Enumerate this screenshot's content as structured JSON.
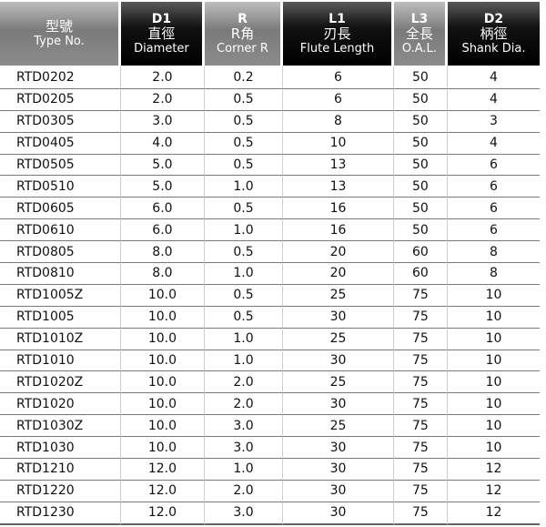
{
  "headers": [
    {
      "code": "",
      "cjk": "型號",
      "en": "Type No.",
      "style": "gray"
    },
    {
      "code": "D1",
      "cjk": "直徑",
      "en": "Diameter",
      "style": "black"
    },
    {
      "code": "R",
      "cjk": "R角",
      "en": "Corner R",
      "style": "gray"
    },
    {
      "code": "L1",
      "cjk": "刃長",
      "en": "Flute Length",
      "style": "black"
    },
    {
      "code": "L3",
      "cjk": "全長",
      "en": "O.A.L.",
      "style": "gray"
    },
    {
      "code": "D2",
      "cjk": "柄徑",
      "en": "Shank Dia.",
      "style": "black"
    }
  ],
  "rows": [
    [
      "RTD0202",
      "2.0",
      "0.2",
      "6",
      "50",
      "4"
    ],
    [
      "RTD0205",
      "2.0",
      "0.5",
      "6",
      "50",
      "4"
    ],
    [
      "RTD0305",
      "3.0",
      "0.5",
      "8",
      "50",
      "3"
    ],
    [
      "RTD0405",
      "4.0",
      "0.5",
      "10",
      "50",
      "4"
    ],
    [
      "RTD0505",
      "5.0",
      "0.5",
      "13",
      "50",
      "6"
    ],
    [
      "RTD0510",
      "5.0",
      "1.0",
      "13",
      "50",
      "6"
    ],
    [
      "RTD0605",
      "6.0",
      "0.5",
      "16",
      "50",
      "6"
    ],
    [
      "RTD0610",
      "6.0",
      "1.0",
      "16",
      "50",
      "6"
    ],
    [
      "RTD0805",
      "8.0",
      "0.5",
      "20",
      "60",
      "8"
    ],
    [
      "RTD0810",
      "8.0",
      "1.0",
      "20",
      "60",
      "8"
    ],
    [
      "RTD1005Z",
      "10.0",
      "0.5",
      "25",
      "75",
      "10"
    ],
    [
      "RTD1005",
      "10.0",
      "0.5",
      "30",
      "75",
      "10"
    ],
    [
      "RTD1010Z",
      "10.0",
      "1.0",
      "25",
      "75",
      "10"
    ],
    [
      "RTD1010",
      "10.0",
      "1.0",
      "30",
      "75",
      "10"
    ],
    [
      "RTD1020Z",
      "10.0",
      "2.0",
      "25",
      "75",
      "10"
    ],
    [
      "RTD1020",
      "10.0",
      "2.0",
      "30",
      "75",
      "10"
    ],
    [
      "RTD1030Z",
      "10.0",
      "3.0",
      "25",
      "75",
      "10"
    ],
    [
      "RTD1030",
      "10.0",
      "3.0",
      "30",
      "75",
      "10"
    ],
    [
      "RTD1210",
      "12.0",
      "1.0",
      "30",
      "75",
      "12"
    ],
    [
      "RTD1220",
      "12.0",
      "2.0",
      "30",
      "75",
      "12"
    ],
    [
      "RTD1230",
      "12.0",
      "3.0",
      "30",
      "75",
      "12"
    ]
  ]
}
